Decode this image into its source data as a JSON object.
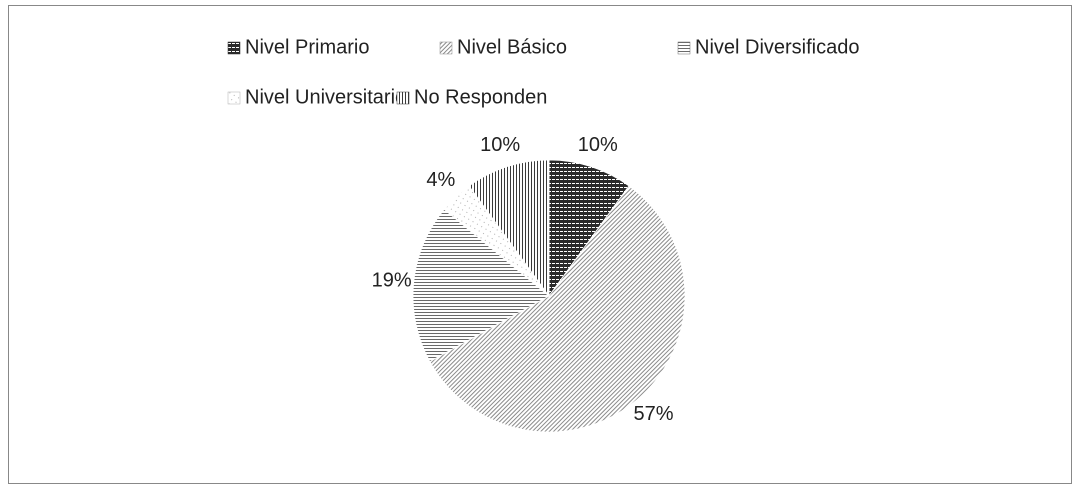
{
  "chart_data": {
    "type": "pie",
    "categories": [
      "Nivel Primario",
      "Nivel Básico",
      "Nivel Diversificado",
      "Nivel Universitario",
      "No Responden"
    ],
    "values": [
      10,
      57,
      19,
      4,
      10
    ],
    "value_labels": [
      "10%",
      "57%",
      "19%",
      "4%",
      "10%"
    ],
    "colors": [
      "#2a2a2a",
      "#8a8a8a",
      "#6a6a6a",
      "#b0b0b0",
      "#3a3a3a"
    ],
    "legend": "top"
  }
}
